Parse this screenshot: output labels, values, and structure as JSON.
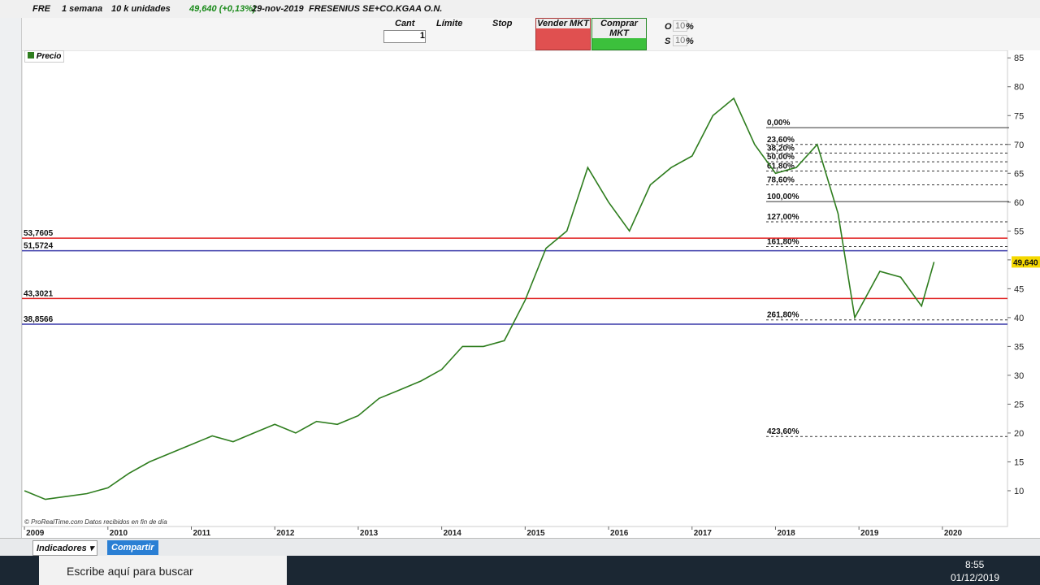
{
  "header": {
    "symbol": "FRE",
    "period": "1 semana",
    "units": "10 k unidades",
    "quote": "49,640 (+0,13%)",
    "date": "29-nov-2019",
    "name": "FRESENIUS SE+CO.KGAA O.N."
  },
  "order_panel": {
    "qty_label": "Cant",
    "qty": "1",
    "limit": "Límite",
    "stop": "Stop",
    "sell": "Vender MKT",
    "buy": "Comprar MKT",
    "o_label": "O",
    "o_value": "10",
    "o_pct": "%",
    "s_label": "S",
    "s_value": "10",
    "s_pct": "%"
  },
  "chart_data": {
    "type": "line",
    "legend": "Precio",
    "footer": "© ProRealTime.com Datos recibidos en fin de día",
    "color": "#2e7d1e",
    "x": [
      2009.0,
      2009.25,
      2009.5,
      2009.75,
      2010.0,
      2010.25,
      2010.5,
      2010.75,
      2011.0,
      2011.25,
      2011.5,
      2011.75,
      2012.0,
      2012.25,
      2012.5,
      2012.75,
      2013.0,
      2013.25,
      2013.5,
      2013.75,
      2014.0,
      2014.25,
      2014.5,
      2014.75,
      2015.0,
      2015.25,
      2015.5,
      2015.75,
      2016.0,
      2016.25,
      2016.5,
      2016.75,
      2017.0,
      2017.25,
      2017.5,
      2017.75,
      2018.0,
      2018.25,
      2018.5,
      2018.75,
      2018.95,
      2019.25,
      2019.5,
      2019.75,
      2019.9
    ],
    "values": [
      10,
      8.5,
      9,
      9.5,
      10.5,
      13,
      15,
      16.5,
      18,
      19.5,
      18.5,
      20,
      21.5,
      20,
      22,
      21.5,
      23,
      26,
      27.5,
      29,
      31,
      35,
      35,
      36,
      43,
      52,
      55,
      66,
      60,
      55,
      63,
      66,
      68,
      75,
      78,
      70,
      65,
      66,
      70,
      58,
      40,
      48,
      47,
      42,
      49.64
    ],
    "xlim": [
      2008.97,
      2020.78
    ],
    "xticks": [
      2009,
      2010,
      2011,
      2012,
      2013,
      2014,
      2015,
      2016,
      2017,
      2018,
      2019,
      2020
    ],
    "ylim": [
      3.8,
      86.3
    ],
    "yticks": [
      10,
      15,
      20,
      25,
      30,
      35,
      40,
      45,
      50,
      55,
      60,
      65,
      70,
      75,
      80,
      85
    ],
    "last_price": {
      "value": 49.64,
      "label": "49,640"
    },
    "hlines": [
      {
        "value": 53.7605,
        "label": "53,7605",
        "color": "#e02020"
      },
      {
        "value": 51.5724,
        "label": "51,5724",
        "color": "#3838a8"
      },
      {
        "value": 43.3021,
        "label": "43,3021",
        "color": "#e02020"
      },
      {
        "value": 38.8566,
        "label": "38,8566",
        "color": "#3838a8"
      }
    ],
    "fib_levels": [
      {
        "value": 72.9,
        "label": "0,00%",
        "dashed": false
      },
      {
        "value": 70.0,
        "label": "23,60%",
        "dashed": true
      },
      {
        "value": 68.5,
        "label": "38,20%",
        "dashed": true
      },
      {
        "value": 67.0,
        "label": "50,00%",
        "dashed": true
      },
      {
        "value": 65.4,
        "label": "61,80%",
        "dashed": true
      },
      {
        "value": 63.0,
        "label": "78,60%",
        "dashed": true
      },
      {
        "value": 60.1,
        "label": "100,00%",
        "dashed": false
      },
      {
        "value": 56.6,
        "label": "127,00%",
        "dashed": true
      },
      {
        "value": 52.3,
        "label": "161,80%",
        "dashed": true
      },
      {
        "value": 39.6,
        "label": "261,80%",
        "dashed": true
      },
      {
        "value": 19.4,
        "label": "423,60%",
        "dashed": true
      }
    ]
  },
  "bottom_toolbar": {
    "indicators": "Indicadores",
    "share": "Compartir"
  },
  "taskbar": {
    "search": "Escribe aquí para buscar",
    "time": "8:55",
    "date": "01/12/2019"
  }
}
